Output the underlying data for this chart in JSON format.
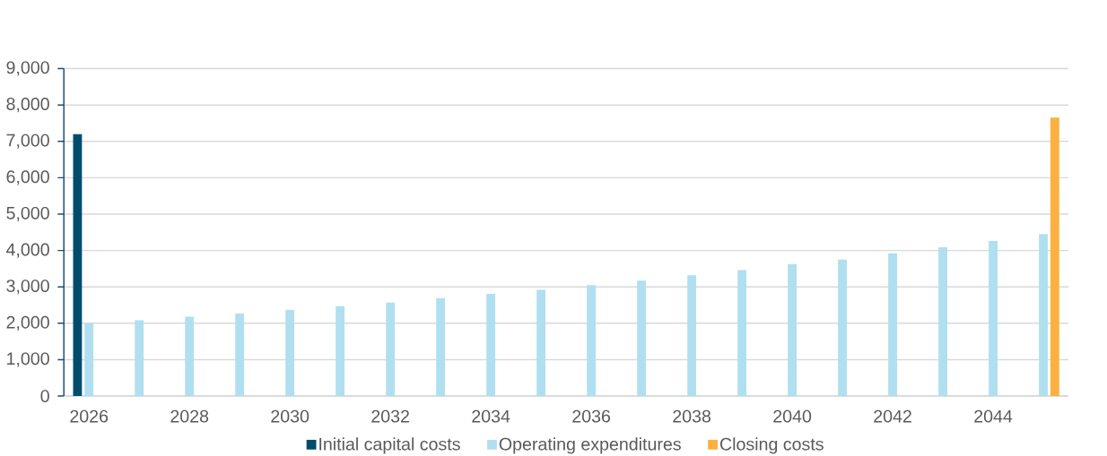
{
  "chart_data": {
    "type": "bar",
    "categories": [
      "2026",
      null,
      "2028",
      null,
      "2030",
      null,
      "2032",
      null,
      "2034",
      null,
      "2036",
      null,
      "2038",
      null,
      "2040",
      null,
      "2042",
      null,
      "2044",
      null
    ],
    "series": [
      {
        "name": "Initial capital costs",
        "color": "#004c6d",
        "values": [
          7200,
          null,
          null,
          null,
          null,
          null,
          null,
          null,
          null,
          null,
          null,
          null,
          null,
          null,
          null,
          null,
          null,
          null,
          null,
          null
        ]
      },
      {
        "name": "Operating expenditures",
        "color": "#b0dff0",
        "values": [
          2000,
          2080,
          2180,
          2270,
          2370,
          2470,
          2570,
          2690,
          2810,
          2920,
          3050,
          3170,
          3320,
          3460,
          3630,
          3750,
          3920,
          4090,
          4260,
          4450
        ]
      },
      {
        "name": "Closing costs",
        "color": "#fbb040",
        "values": [
          null,
          null,
          null,
          null,
          null,
          null,
          null,
          null,
          null,
          null,
          null,
          null,
          null,
          null,
          null,
          null,
          null,
          null,
          null,
          7650
        ]
      }
    ],
    "ylim": [
      0,
      9000
    ],
    "yticks": [
      {
        "value": 0,
        "label": "0"
      },
      {
        "value": 1000,
        "label": "1,000"
      },
      {
        "value": 2000,
        "label": "2,000"
      },
      {
        "value": 3000,
        "label": "3,000"
      },
      {
        "value": 4000,
        "label": "4,000"
      },
      {
        "value": 5000,
        "label": "5,000"
      },
      {
        "value": 6000,
        "label": "6,000"
      },
      {
        "value": 7000,
        "label": "7,000"
      },
      {
        "value": 8000,
        "label": "8,000"
      },
      {
        "value": 9000,
        "label": "9,000"
      }
    ],
    "grid": "y",
    "legend": "bottom"
  }
}
